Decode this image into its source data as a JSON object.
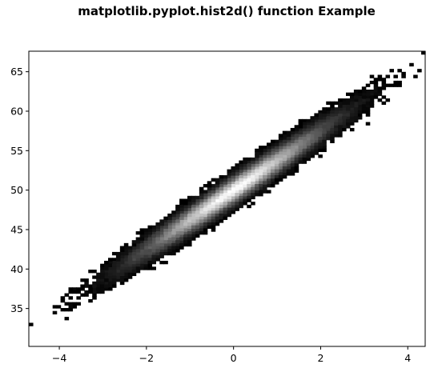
{
  "chart_data": {
    "type": "heatmap",
    "subtype": "hist2d",
    "title": "matplotlib.pyplot.hist2d() function Example",
    "xlabel": "",
    "ylabel": "",
    "colormap": "gray",
    "xlim": [
      -4.7,
      4.4
    ],
    "ylim": [
      30.2,
      67.6
    ],
    "x_ticks": [
      -4,
      -2,
      0,
      2,
      4
    ],
    "x_tick_labels": [
      "−4",
      "−2",
      "0",
      "2",
      "4"
    ],
    "y_ticks": [
      35,
      40,
      45,
      50,
      55,
      60,
      65
    ],
    "y_tick_labels": [
      "35",
      "40",
      "45",
      "50",
      "55",
      "60",
      "65"
    ],
    "grid": false,
    "distribution": {
      "x_mean": 0,
      "y_mean": 50,
      "y_slope_per_x": 3.75,
      "x_std": 1,
      "residual_std": 0.8
    }
  }
}
